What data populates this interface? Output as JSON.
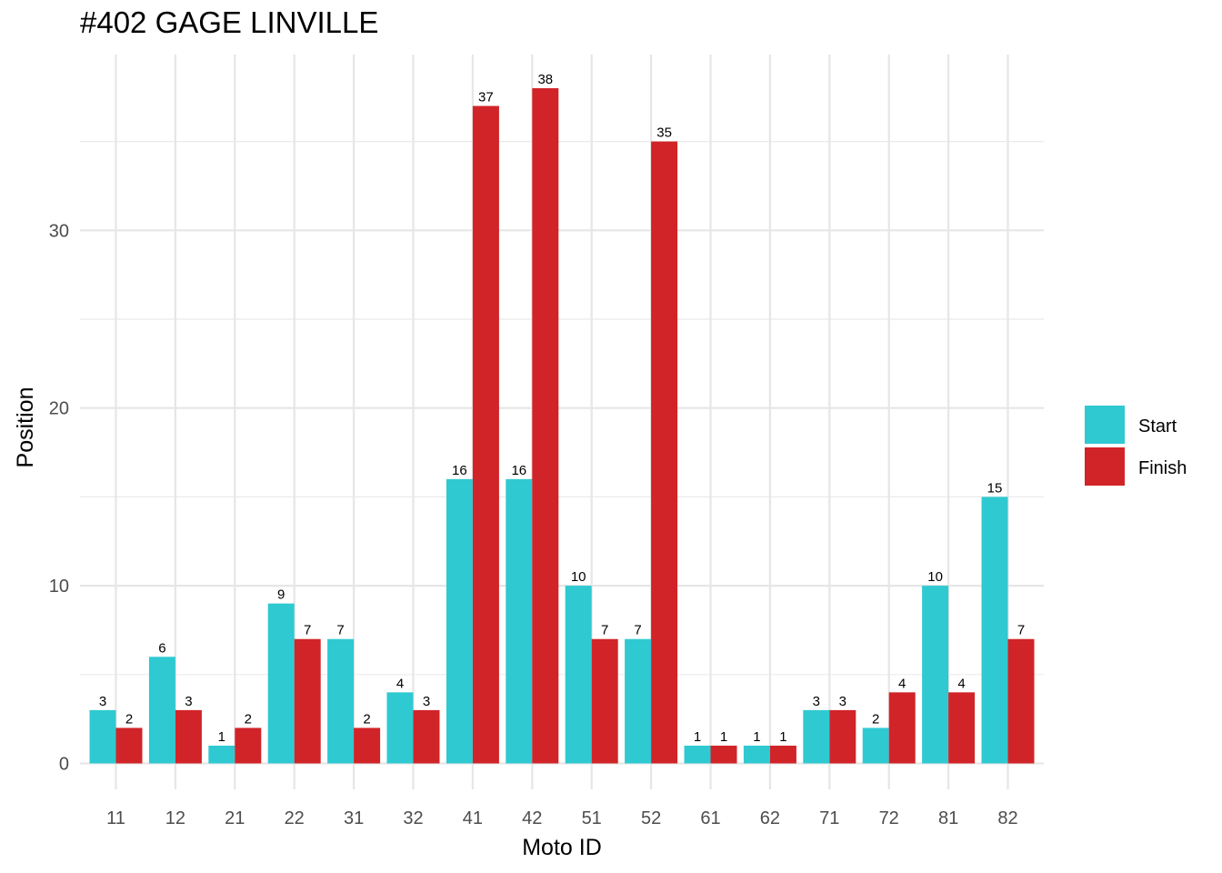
{
  "chart_data": {
    "type": "bar",
    "title": "#402 GAGE LINVILLE",
    "xlabel": "Moto ID",
    "ylabel": "Position",
    "categories": [
      "11",
      "12",
      "21",
      "22",
      "31",
      "32",
      "41",
      "42",
      "51",
      "52",
      "61",
      "62",
      "71",
      "72",
      "81",
      "82"
    ],
    "series": [
      {
        "name": "Start",
        "color": "#2fc9d2",
        "values": [
          3,
          6,
          1,
          9,
          7,
          4,
          16,
          16,
          10,
          7,
          1,
          1,
          3,
          2,
          10,
          15
        ]
      },
      {
        "name": "Finish",
        "color": "#d12428",
        "values": [
          2,
          3,
          2,
          7,
          2,
          3,
          37,
          38,
          7,
          35,
          1,
          1,
          3,
          4,
          4,
          7
        ]
      }
    ],
    "yticks": [
      0,
      10,
      20,
      30
    ],
    "ylim": [
      -1.5,
      40
    ],
    "grid": true,
    "legend": "right",
    "data_labels": true
  }
}
